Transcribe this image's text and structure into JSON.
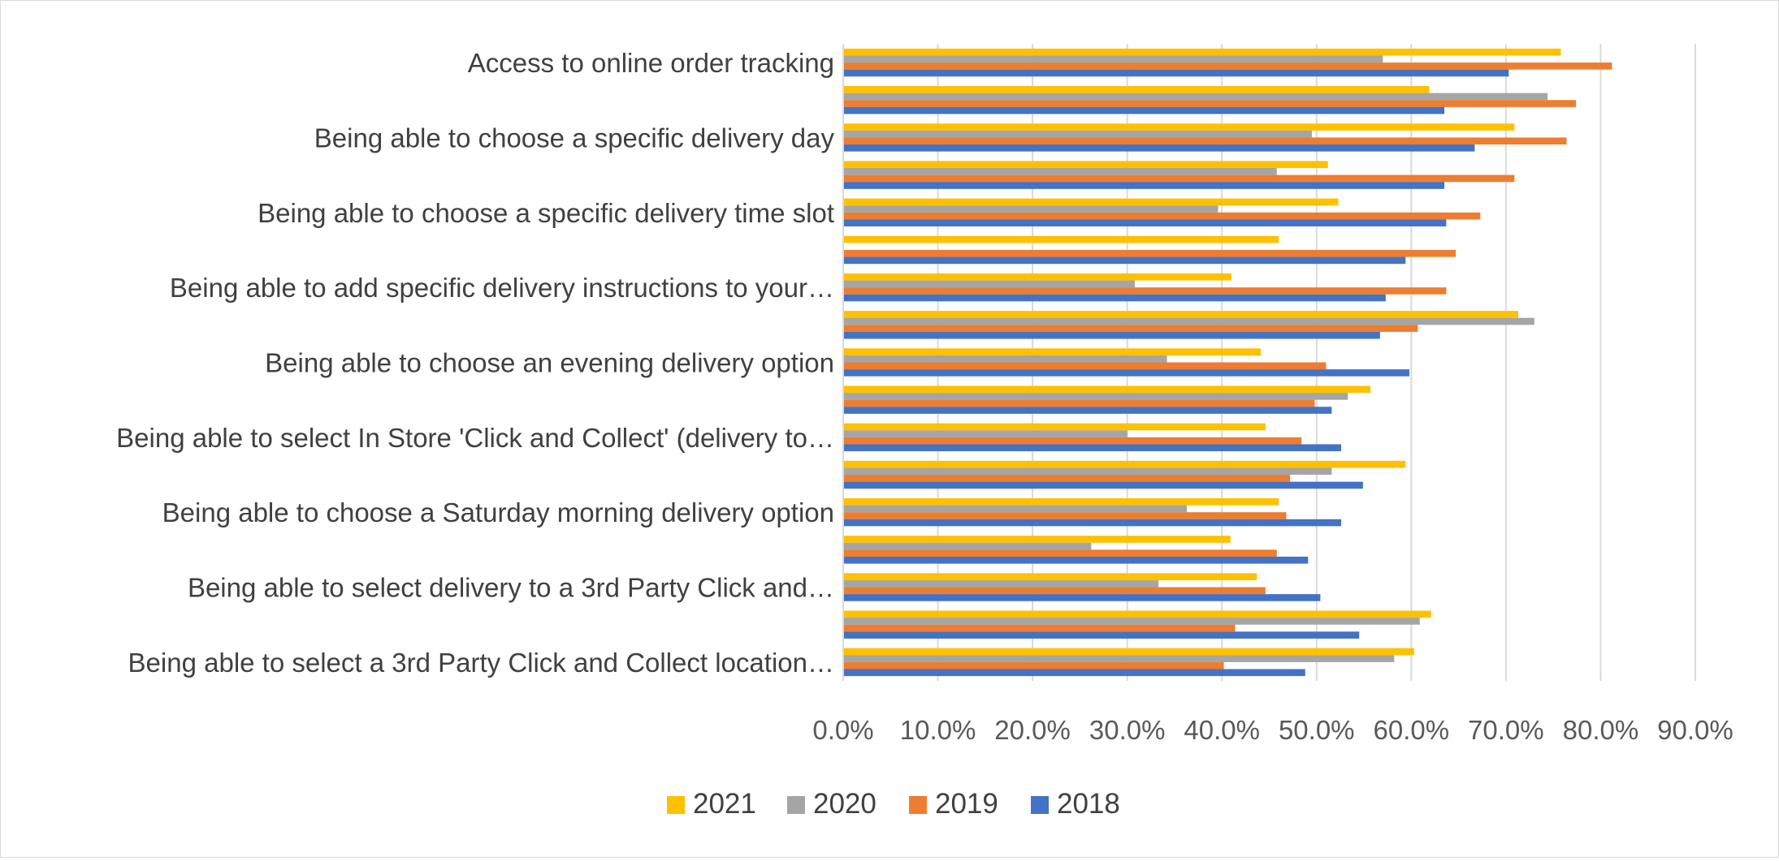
{
  "chart_data": {
    "type": "bar",
    "orientation": "horizontal",
    "title": "",
    "xlabel": "",
    "ylabel": "",
    "xlim": [
      0,
      0.9
    ],
    "x_ticks": [
      "0.0%",
      "10.0%",
      "20.0%",
      "30.0%",
      "40.0%",
      "50.0%",
      "60.0%",
      "70.0%",
      "80.0%",
      "90.0%"
    ],
    "grid": true,
    "legend_position": "bottom",
    "categories": [
      "Access to online order tracking",
      "",
      "Being able to choose a specific delivery day",
      "",
      "Being able to choose a specific delivery time slot",
      "",
      "Being able to add specific delivery instructions to your…",
      "",
      "Being able to choose an evening delivery option",
      "",
      "Being able to select In Store 'Click and Collect' (delivery to…",
      "",
      "Being able to choose a Saturday morning delivery option",
      "",
      "Being able to select delivery to a 3rd Party Click and…",
      "",
      "Being able to select a 3rd Party Click and Collect location…"
    ],
    "series": [
      {
        "name": "2021",
        "color": "#FFC000",
        "values": [
          0.758,
          0.619,
          0.709,
          0.512,
          0.523,
          0.46,
          0.41,
          0.713,
          0.441,
          0.557,
          0.446,
          0.594,
          0.46,
          0.409,
          0.437,
          0.621,
          0.603
        ]
      },
      {
        "name": "2020",
        "color": "#A5A5A5",
        "values": [
          0.57,
          0.744,
          0.495,
          0.458,
          0.396,
          0.0,
          0.308,
          0.73,
          0.342,
          0.533,
          0.3,
          0.516,
          0.363,
          0.262,
          0.333,
          0.609,
          0.582
        ]
      },
      {
        "name": "2019",
        "color": "#ED7D31",
        "values": [
          0.812,
          0.774,
          0.764,
          0.709,
          0.673,
          0.647,
          0.637,
          0.607,
          0.51,
          0.498,
          0.484,
          0.472,
          0.468,
          0.458,
          0.446,
          0.414,
          0.402
        ]
      },
      {
        "name": "2018",
        "color": "#4472C4",
        "values": [
          0.703,
          0.635,
          0.667,
          0.635,
          0.637,
          0.594,
          0.573,
          0.567,
          0.598,
          0.516,
          0.526,
          0.549,
          0.526,
          0.491,
          0.504,
          0.545,
          0.488
        ]
      }
    ]
  }
}
